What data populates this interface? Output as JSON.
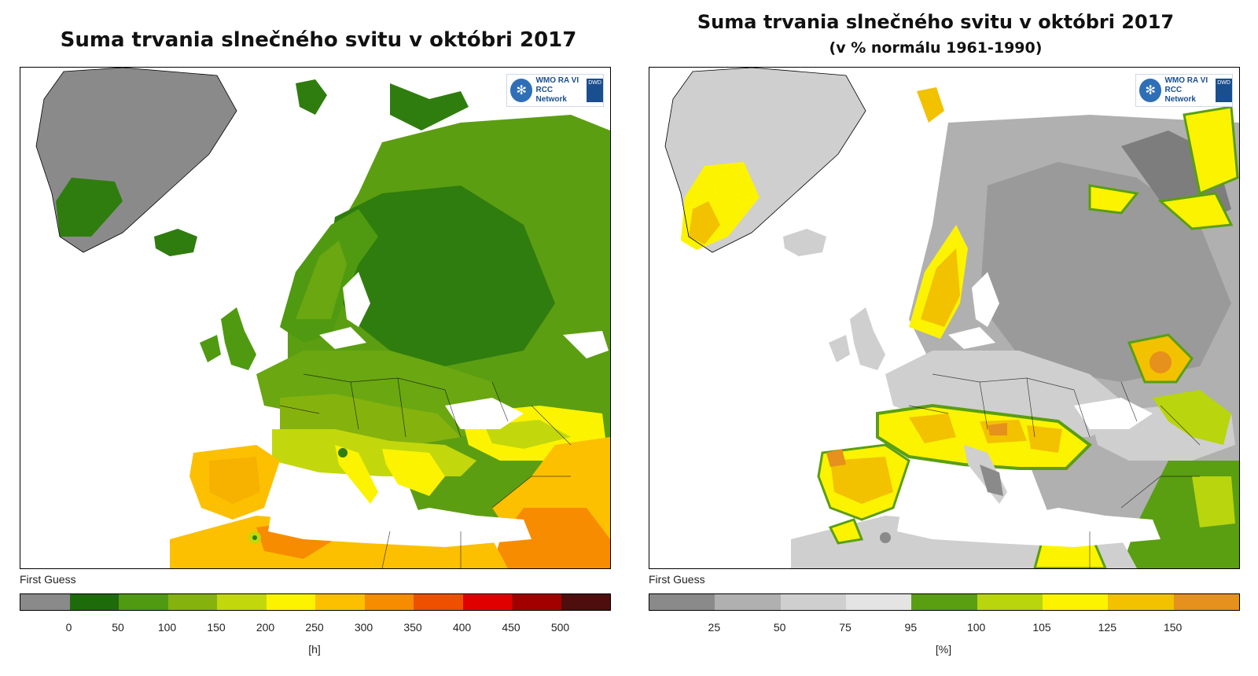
{
  "left_panel": {
    "title": "Suma trvania slnečného svitu v októbri 2017",
    "first_guess": "First Guess",
    "unit": "[h]",
    "legend_ticks": [
      "0",
      "50",
      "100",
      "150",
      "200",
      "250",
      "300",
      "350",
      "400",
      "450",
      "500"
    ],
    "legend_colors": [
      "#8a8a8a",
      "#1e6b0c",
      "#4f9a10",
      "#86b20e",
      "#c2d80c",
      "#fcf300",
      "#fcc000",
      "#f78c00",
      "#ee5000",
      "#e10000",
      "#a20000",
      "#4e0e0e"
    ]
  },
  "right_panel": {
    "title": "Suma trvania slnečného svitu v októbri 2017",
    "subtitle": "(v % normálu 1961-1990)",
    "first_guess": "First Guess",
    "unit": "[%]",
    "legend_ticks": [
      "25",
      "50",
      "75",
      "95",
      "100",
      "105",
      "125",
      "150"
    ],
    "legend_colors": [
      "#8a8a8a",
      "#b0b0b0",
      "#cfcfcf",
      "#e4e4e4",
      "#5a9e12",
      "#b8d50e",
      "#fcf300",
      "#f2c100",
      "#e6901d"
    ]
  },
  "logo": {
    "line1": "WMO RA VI",
    "line2": "RCC Network",
    "badge": "DWD"
  },
  "icons": {
    "wmo": "wmo-logo-icon",
    "dwd": "dwd-logo-icon"
  }
}
